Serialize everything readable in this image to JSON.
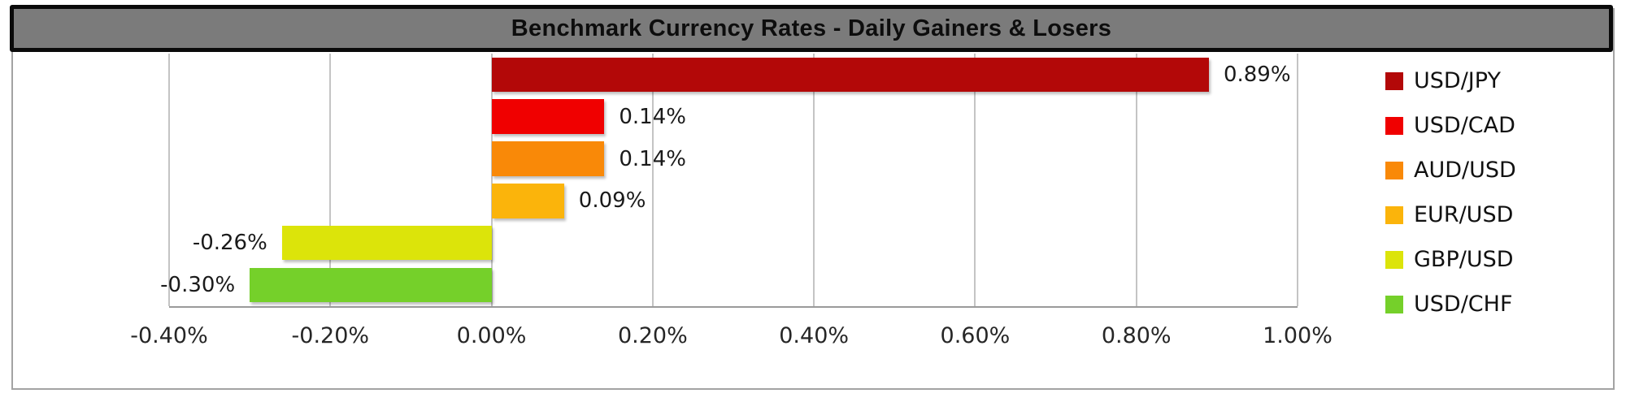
{
  "title": "Benchmark Currency Rates - Daily Gainers & Losers",
  "colors": {
    "title_band_bg": "#7B7B7B",
    "title_band_border": "#0A0A0A",
    "frame_border": "#A3A3A3",
    "gridline": "#C4C4C4",
    "axis_line": "#9A9A9A",
    "plot_bg": "#FFFFFF"
  },
  "chart_data": {
    "type": "bar",
    "orientation": "horizontal",
    "title": "Benchmark Currency Rates - Daily Gainers & Losers",
    "categories": [
      "USD/JPY",
      "USD/CAD",
      "AUD/USD",
      "EUR/USD",
      "GBP/USD",
      "USD/CHF"
    ],
    "values": [
      0.89,
      0.14,
      0.14,
      0.09,
      -0.26,
      -0.3
    ],
    "value_labels": [
      "0.89%",
      "0.14%",
      "0.14%",
      "0.09%",
      "-0.26%",
      "-0.30%"
    ],
    "bar_colors": [
      "#B30808",
      "#F00000",
      "#F98908",
      "#FBB40B",
      "#DCE40A",
      "#75D02A"
    ],
    "xlabel": "",
    "ylabel": "",
    "xlim": [
      -0.4,
      1.0
    ],
    "x_ticks": [
      -0.4,
      -0.2,
      0,
      0.2,
      0.4,
      0.6,
      0.8,
      1.0
    ],
    "x_tick_labels": [
      "-0.40%",
      "-0.20%",
      "0.00%",
      "0.20%",
      "0.40%",
      "0.60%",
      "0.80%",
      "1.00%"
    ],
    "legend": [
      "USD/JPY",
      "USD/CAD",
      "AUD/USD",
      "EUR/USD",
      "GBP/USD",
      "USD/CHF"
    ],
    "legend_position": "right",
    "grid": "vertical"
  }
}
